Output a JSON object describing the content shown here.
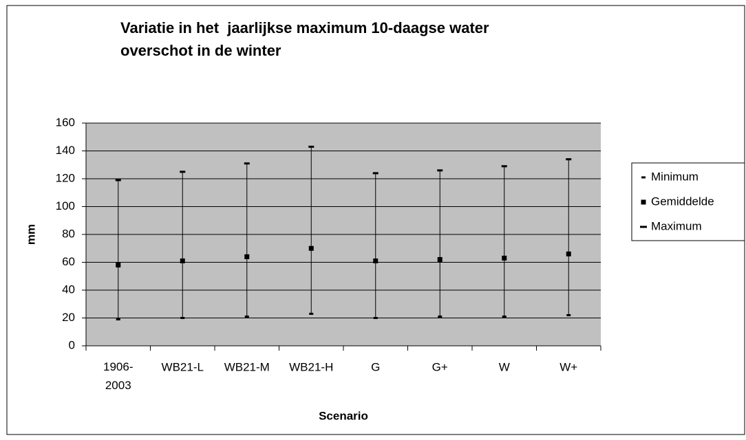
{
  "chart_data": {
    "type": "high-low",
    "title": "Variatie in het  jaarlijkse maximum 10-daagse water overschot in de winter",
    "x_label": "Scenario",
    "y_label": "mm",
    "categories": [
      "1906-2003",
      "WB21-L",
      "WB21-M",
      "WB21-H",
      "G",
      "G+",
      "W",
      "W+"
    ],
    "series": [
      {
        "name": "Minimum",
        "color": "#000000",
        "values": [
          19,
          20,
          21,
          23,
          20,
          21,
          21,
          22
        ]
      },
      {
        "name": "Gemiddelde",
        "color": "#000000",
        "values": [
          58,
          61,
          64,
          70,
          61,
          62,
          63,
          66
        ]
      },
      {
        "name": "Maximum",
        "color": "#000000",
        "values": [
          119,
          125,
          131,
          143,
          124,
          126,
          129,
          134
        ]
      }
    ],
    "ylim": [
      0,
      160
    ],
    "yticks": [
      0,
      20,
      40,
      60,
      80,
      100,
      120,
      140,
      160
    ],
    "grid": true
  }
}
